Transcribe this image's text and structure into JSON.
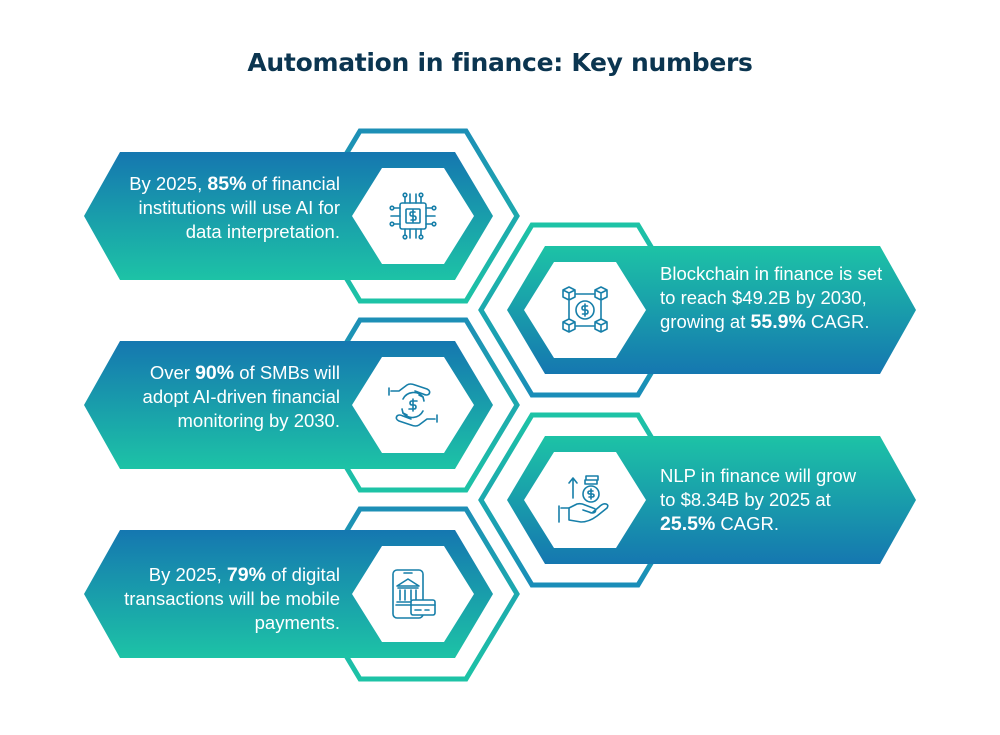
{
  "title": "Automation in finance: Key numbers",
  "colors": {
    "teal": "#1dbfa8",
    "blue": "#1577b0",
    "title": "#0b3550"
  },
  "stats": [
    {
      "id": "ai-data",
      "side": "left",
      "icon": "ai-chip-dollar-icon",
      "before": "By 2025, ",
      "highlight": "85%",
      "after": " of financial institutions will use AI for data interpretation."
    },
    {
      "id": "blockchain",
      "side": "right",
      "icon": "blockchain-dollar-icon",
      "before": "Blockchain in finance is set to reach $49.2B by 2030, growing at ",
      "highlight": "55.9%",
      "after": " CAGR."
    },
    {
      "id": "smb-monitoring",
      "side": "left",
      "icon": "hands-dollar-exchange-icon",
      "before": "Over ",
      "highlight": "90%",
      "after": " of SMBs will adopt AI-driven financial monitoring by 2030."
    },
    {
      "id": "nlp",
      "side": "right",
      "icon": "hand-coins-growth-icon",
      "before": "NLP in finance will grow to $8.34B by 2025 at ",
      "highlight": "25.5%",
      "after": " CAGR."
    },
    {
      "id": "mobile-payments",
      "side": "left",
      "icon": "mobile-bank-payment-icon",
      "before": "By 2025, ",
      "highlight": "79%",
      "after": " of digital transactions will be mobile payments."
    }
  ]
}
